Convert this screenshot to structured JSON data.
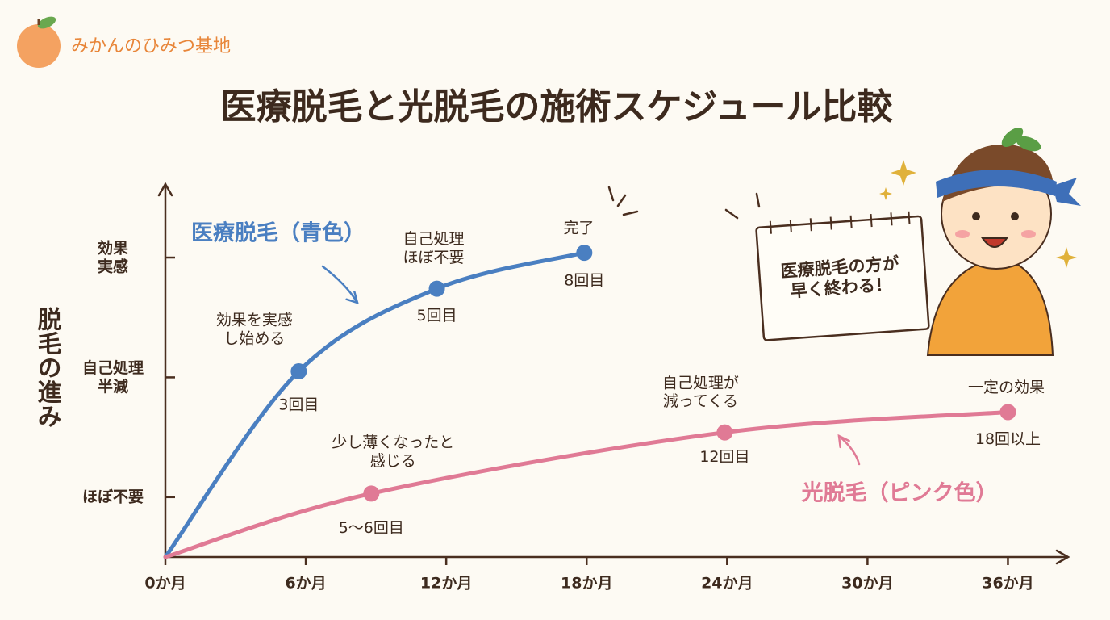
{
  "brand": "みかんのひみつ基地",
  "chart_data": {
    "type": "line",
    "title": "医療脱毛と光脱毛の施術スケジュール比較",
    "y_label": "脱毛の進み",
    "xlim": [
      0,
      38.5
    ],
    "xticks": [
      {
        "value": 0,
        "label": "0か月"
      },
      {
        "value": 6,
        "label": "6か月"
      },
      {
        "value": 12,
        "label": "12か月"
      },
      {
        "value": 18,
        "label": "18か月"
      },
      {
        "value": 24,
        "label": "24か月"
      },
      {
        "value": 30,
        "label": "30か月"
      },
      {
        "value": 36,
        "label": "36か月"
      }
    ],
    "ylim": [
      0.5,
      3.6
    ],
    "yticks": [
      {
        "value": 1,
        "label": "ほぼ不要"
      },
      {
        "value": 2,
        "label": "自己処理\n半減"
      },
      {
        "value": 3,
        "label": "効果\n実感"
      }
    ],
    "series": [
      {
        "name": "医療脱毛（青色）",
        "color": "#4a7fc1",
        "x": [
          0,
          5.7,
          11.6,
          17.9
        ],
        "values": [
          0.5,
          2.05,
          2.74,
          3.04
        ],
        "point_labels": [
          null,
          "3回目",
          "5回目",
          "8回目"
        ],
        "annotations": [
          null,
          "効果を実感\nし始める",
          "自己処理\nほぼ不要",
          "完了"
        ]
      },
      {
        "name": "光脱毛（ピンク色）",
        "color": "#e07a95",
        "x": [
          0,
          8.8,
          23.9,
          36
        ],
        "values": [
          0.5,
          1.03,
          1.54,
          1.71
        ],
        "point_labels": [
          null,
          "5〜6回目",
          "12回目",
          "18回以上"
        ],
        "annotations": [
          null,
          "少し薄くなったと\n感じる",
          "自己処理が\n減ってくる",
          "一定の効果"
        ]
      }
    ]
  },
  "note": "医療脱毛の方が\n早く終わる！"
}
